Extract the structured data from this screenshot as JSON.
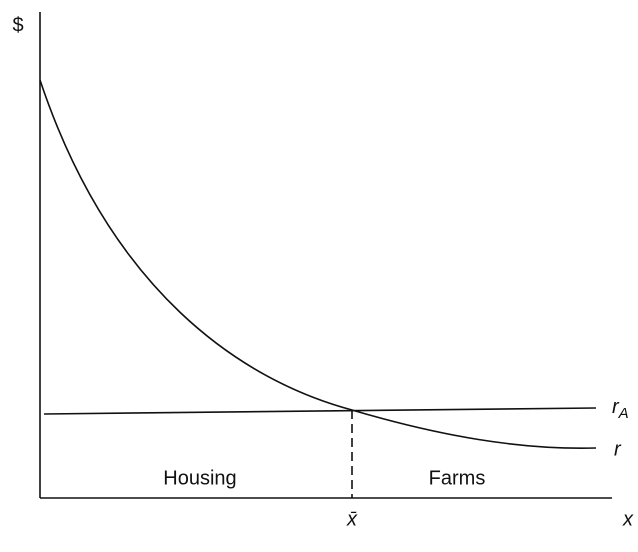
{
  "axes": {
    "y_label": "$",
    "x_label": "x",
    "x_mark": "x̄"
  },
  "curves": {
    "ra": {
      "label": "r",
      "subscript": "A"
    },
    "r": {
      "label": "r"
    }
  },
  "regions": {
    "left": "Housing",
    "right": "Farms"
  }
}
